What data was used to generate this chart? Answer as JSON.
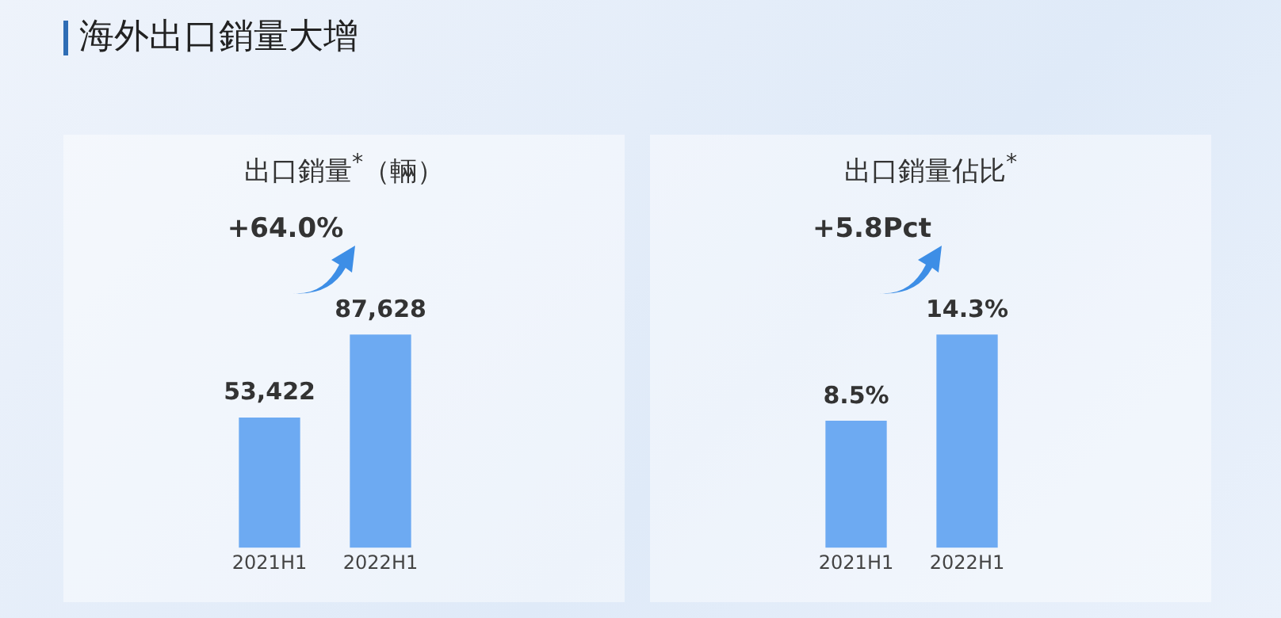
{
  "chart_data": [
    {
      "type": "bar",
      "title": "海外出口銷量大增",
      "subtitle": "出口銷量$^{*}$（輛）",
      "categories": [
        "2021H1",
        "2022H1"
      ],
      "values": [
        53422,
        87628
      ],
      "value_labels": [
        "53,422",
        "87,628"
      ],
      "color": "#6daaf2",
      "annotations": [
        "+64.0%"
      ],
      "grid": false,
      "legend": false
    },
    {
      "type": "bar",
      "subtitle": "出口銷量佔比$^{*}$",
      "categories": [
        "2021H1",
        "2022H1"
      ],
      "values": [
        8.5,
        14.3
      ],
      "value_labels": [
        "8.5%",
        "14.3%"
      ],
      "color": "#6daaf2",
      "annotations": [
        "+5.8Pct"
      ],
      "grid": false,
      "legend": false
    }
  ]
}
